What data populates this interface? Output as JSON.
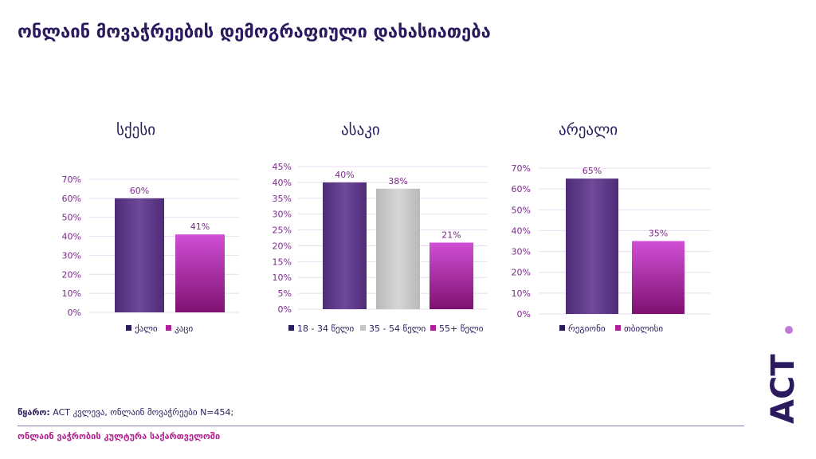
{
  "page_title": "ონლაინ მოვაჭრეების დემოგრაფიული დახასიათება",
  "source_label": "წყარო:",
  "source_text": " ACT კვლევა, ონლაინ მოვაჭრეები N=454;",
  "footer_text": "ონლაინ ვაჭრობის კულტურა საქართველოში",
  "logo_text": "ACT",
  "colors": {
    "purple": "#5e3a86",
    "magenta": "#b0209a",
    "gray": "#c4c4c4",
    "dark_navy": "#2b1a5e",
    "grid": "#eadcf0"
  },
  "chart_data": [
    {
      "type": "bar",
      "title": "სქესი",
      "categories": [
        "ქალი",
        "კაცი"
      ],
      "values": [
        60,
        41
      ],
      "value_labels": [
        "60%",
        "41%"
      ],
      "ylim": [
        0,
        70
      ],
      "ytick_labels": [
        "0%",
        "10%",
        "20%",
        "30%",
        "40%",
        "50%",
        "60%",
        "70%"
      ],
      "bar_colors": [
        "purple",
        "magenta"
      ],
      "legend": [
        "ქალი",
        "კაცი"
      ],
      "grid": true,
      "legend_position": "bottom"
    },
    {
      "type": "bar",
      "title": "ასაკი",
      "categories": [
        "18 - 34 წელი",
        "35 - 54 წელი",
        "55+ წელი"
      ],
      "values": [
        40,
        38,
        21
      ],
      "value_labels": [
        "40%",
        "38%",
        "21%"
      ],
      "ylim": [
        0,
        45
      ],
      "ytick_labels": [
        "0%",
        "5%",
        "10%",
        "15%",
        "20%",
        "25%",
        "30%",
        "35%",
        "40%",
        "45%"
      ],
      "bar_colors": [
        "purple",
        "gray",
        "magenta"
      ],
      "legend": [
        "18 - 34 წელი",
        "35 - 54 წელი",
        "55+ წელი"
      ],
      "grid": true,
      "legend_position": "bottom"
    },
    {
      "type": "bar",
      "title": "არეალი",
      "categories": [
        "რეგიონი",
        "თბილისი"
      ],
      "values": [
        65,
        35
      ],
      "value_labels": [
        "65%",
        "35%"
      ],
      "ylim": [
        0,
        70
      ],
      "ytick_labels": [
        "0%",
        "10%",
        "20%",
        "30%",
        "40%",
        "50%",
        "60%",
        "70%"
      ],
      "bar_colors": [
        "purple",
        "magenta"
      ],
      "legend": [
        "რეგიონი",
        "თბილისი"
      ],
      "grid": true,
      "legend_position": "bottom"
    }
  ]
}
